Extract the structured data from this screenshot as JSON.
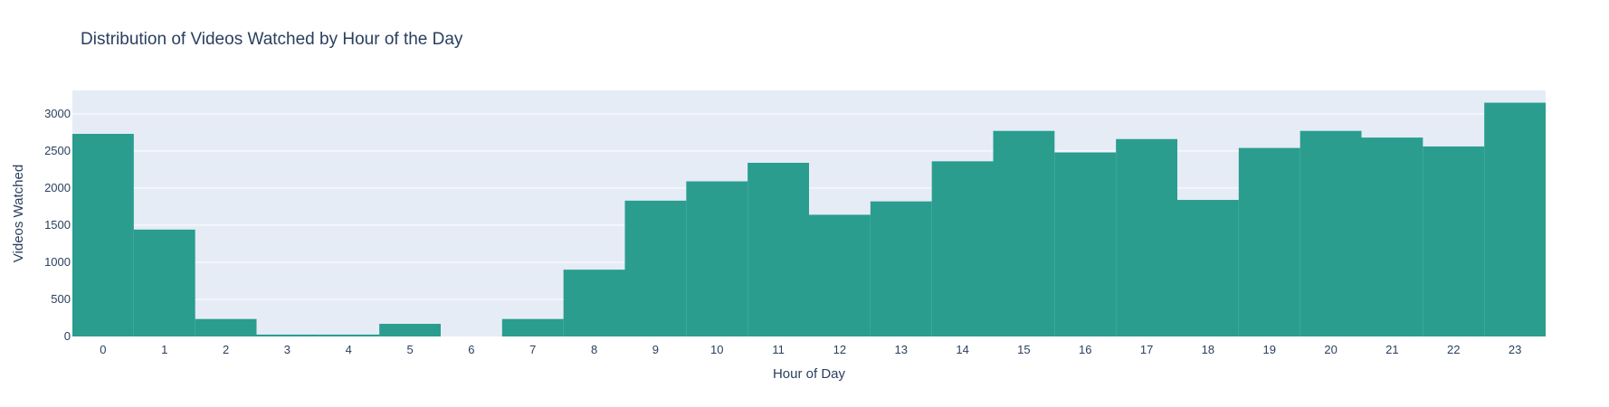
{
  "chart_data": {
    "type": "bar",
    "title": "Distribution of Videos Watched by Hour of the Day",
    "xlabel": "Hour of Day",
    "ylabel": "Videos Watched",
    "categories": [
      "0",
      "1",
      "2",
      "3",
      "4",
      "5",
      "6",
      "7",
      "8",
      "9",
      "10",
      "11",
      "12",
      "13",
      "14",
      "15",
      "16",
      "17",
      "18",
      "19",
      "20",
      "21",
      "22",
      "23"
    ],
    "values": [
      2730,
      1440,
      235,
      25,
      25,
      170,
      0,
      235,
      900,
      1830,
      2090,
      2340,
      1640,
      1820,
      2360,
      2770,
      2480,
      2660,
      1840,
      2540,
      2770,
      2680,
      2560,
      3150
    ],
    "yticks": [
      0,
      500,
      1000,
      1500,
      2000,
      2500,
      3000
    ],
    "ylim": [
      0,
      3315
    ],
    "grid": true,
    "colors": {
      "bar": "#2a9d8f",
      "plot_bg": "#e5ecf6",
      "grid": "#ffffff",
      "text": "#2a3f5f"
    }
  }
}
